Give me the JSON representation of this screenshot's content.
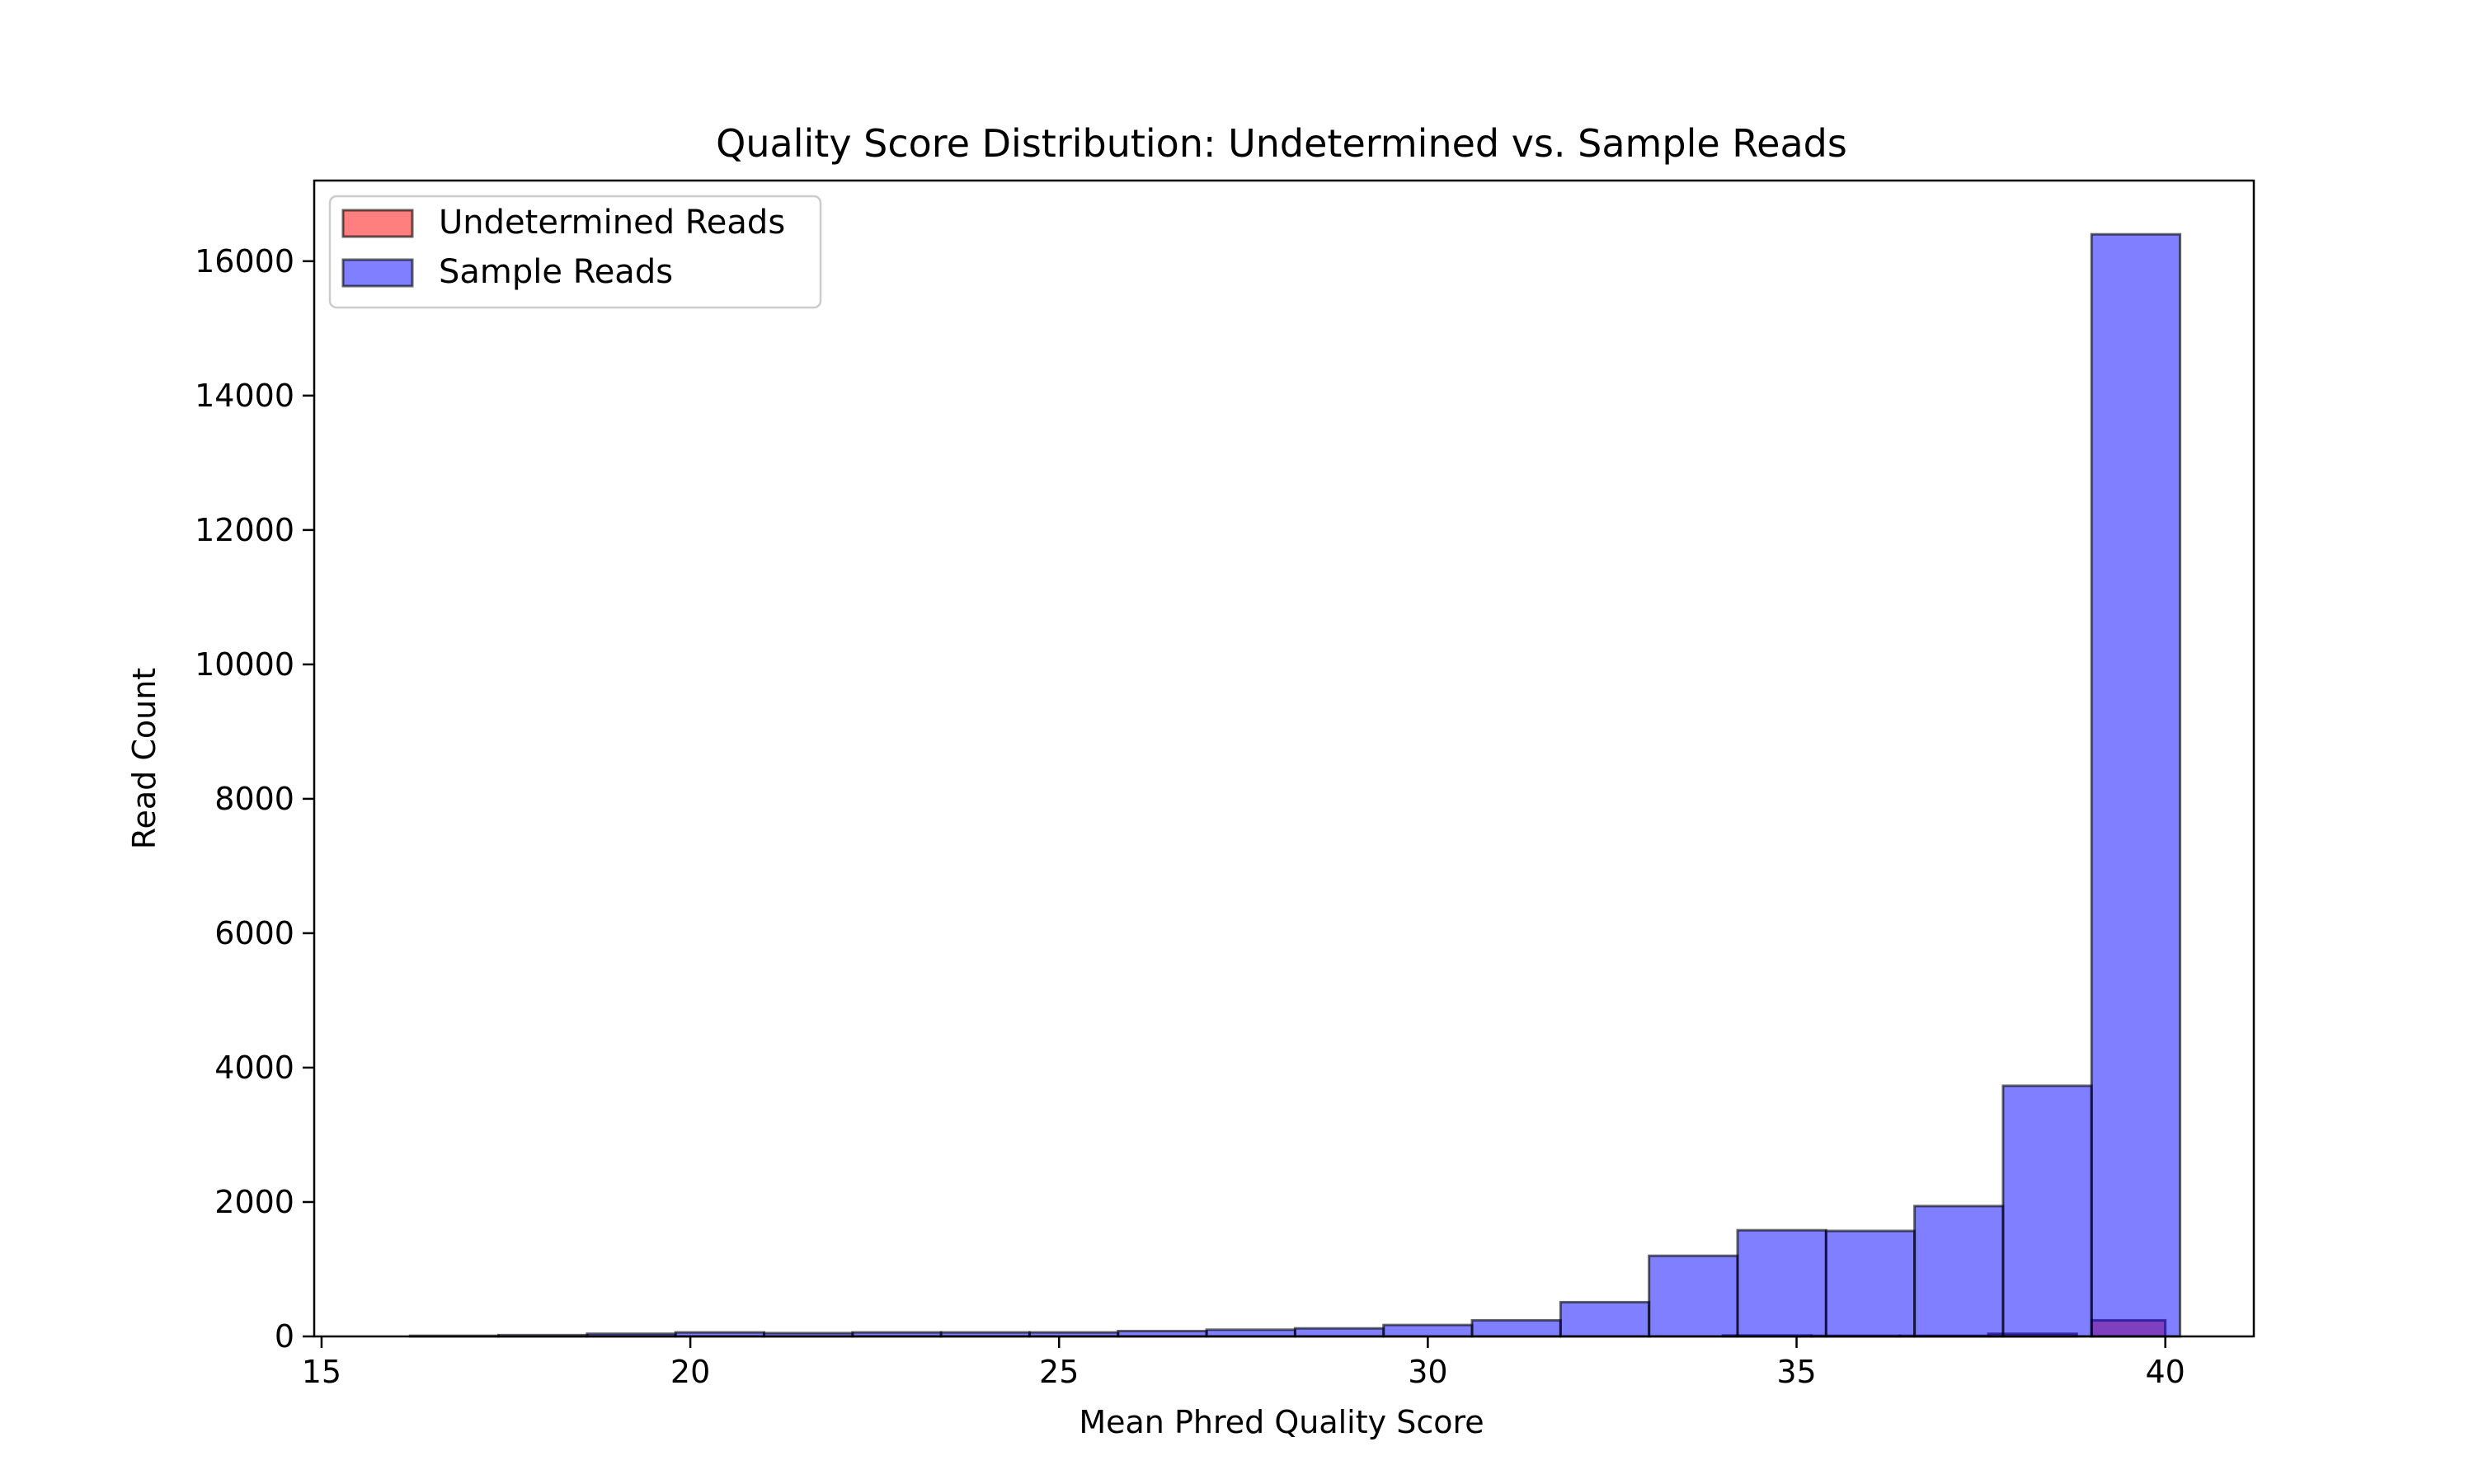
{
  "chart_data": {
    "type": "bar",
    "title": "Quality Score Distribution: Undetermined vs. Sample Reads",
    "xlabel": "Mean Phred Quality Score",
    "ylabel": "Read Count",
    "xlim": [
      14.9,
      41.2
    ],
    "ylim": [
      0,
      17200
    ],
    "x_ticks": [
      15,
      20,
      25,
      30,
      35,
      40
    ],
    "y_ticks": [
      0,
      2000,
      4000,
      6000,
      8000,
      10000,
      12000,
      14000,
      16000
    ],
    "grid": false,
    "legend_position": "top-left",
    "series": [
      {
        "name": "Undetermined Reads",
        "color": "#ff0000",
        "bins": [
          {
            "x0": 34.0,
            "x1": 35.2,
            "value": 15
          },
          {
            "x0": 35.2,
            "x1": 36.4,
            "value": 10
          },
          {
            "x0": 36.4,
            "x1": 37.6,
            "value": 10
          },
          {
            "x0": 37.6,
            "x1": 38.8,
            "value": 40
          },
          {
            "x0": 39.0,
            "x1": 40.0,
            "value": 240
          }
        ]
      },
      {
        "name": "Sample Reads",
        "color": "#0000ff",
        "bins": [
          {
            "x0": 16.2,
            "x1": 17.4,
            "value": 10
          },
          {
            "x0": 17.4,
            "x1": 18.6,
            "value": 20
          },
          {
            "x0": 18.6,
            "x1": 19.8,
            "value": 40
          },
          {
            "x0": 19.8,
            "x1": 21.0,
            "value": 60
          },
          {
            "x0": 21.0,
            "x1": 22.2,
            "value": 50
          },
          {
            "x0": 22.2,
            "x1": 23.4,
            "value": 60
          },
          {
            "x0": 23.4,
            "x1": 24.6,
            "value": 60
          },
          {
            "x0": 24.6,
            "x1": 25.8,
            "value": 60
          },
          {
            "x0": 25.8,
            "x1": 27.0,
            "value": 80
          },
          {
            "x0": 27.0,
            "x1": 28.2,
            "value": 100
          },
          {
            "x0": 28.2,
            "x1": 29.4,
            "value": 120
          },
          {
            "x0": 29.4,
            "x1": 30.6,
            "value": 170
          },
          {
            "x0": 30.6,
            "x1": 31.8,
            "value": 240
          },
          {
            "x0": 31.8,
            "x1": 33.0,
            "value": 510
          },
          {
            "x0": 33.0,
            "x1": 34.2,
            "value": 1200
          },
          {
            "x0": 34.2,
            "x1": 35.4,
            "value": 1580
          },
          {
            "x0": 35.4,
            "x1": 36.6,
            "value": 1570
          },
          {
            "x0": 36.6,
            "x1": 37.8,
            "value": 1940
          },
          {
            "x0": 37.8,
            "x1": 39.0,
            "value": 3730
          },
          {
            "x0": 39.0,
            "x1": 40.2,
            "value": 16400
          }
        ]
      }
    ]
  }
}
